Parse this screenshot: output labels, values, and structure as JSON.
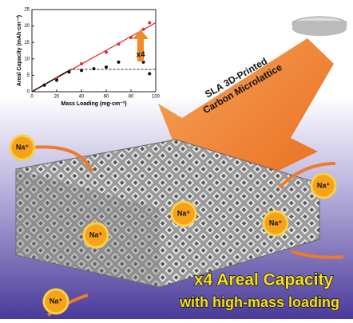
{
  "chart_data": {
    "type": "scatter",
    "xlabel": "Mass Loading (mg·cm⁻²)",
    "ylabel": "Areal Capacity (mAh·cm⁻²)",
    "xlim": [
      0,
      100
    ],
    "ylim": [
      0,
      25
    ],
    "xticks": [
      0,
      20,
      40,
      60,
      80,
      100
    ],
    "yticks": [
      0,
      5,
      10,
      15,
      20,
      25
    ],
    "series": [
      {
        "color": "#e03030",
        "x": [
          10,
          20,
          30,
          40,
          60,
          70,
          80,
          90,
          95
        ],
        "values": [
          2,
          4,
          6,
          8.5,
          12,
          14.5,
          16.5,
          19,
          21
        ]
      },
      {
        "color": "#111111",
        "x": [
          10,
          20,
          30,
          40,
          50,
          60,
          70,
          90,
          95
        ],
        "values": [
          2,
          3.5,
          6,
          6.5,
          7,
          7.5,
          9,
          9,
          5.5
        ]
      }
    ],
    "lines": [
      {
        "color": "#e03030",
        "x": [
          0,
          100
        ],
        "values": [
          0,
          21
        ]
      },
      {
        "color": "#111111",
        "x": [
          0,
          30
        ],
        "values": [
          0,
          6.5
        ]
      },
      {
        "color": "#555555",
        "dash": true,
        "x": [
          30,
          100
        ],
        "values": [
          6.8,
          6.8
        ]
      }
    ],
    "annotation": "x4"
  },
  "arrow_text": [
    "SLA 3D-Printed",
    "Carbon Microlattice"
  ],
  "ions": [
    "Na⁺",
    "Na⁺",
    "Na⁺",
    "Na⁺",
    "Na⁺",
    "Na⁺"
  ],
  "headline": [
    "x4 Areal Capacity",
    "with high-mass loading"
  ]
}
